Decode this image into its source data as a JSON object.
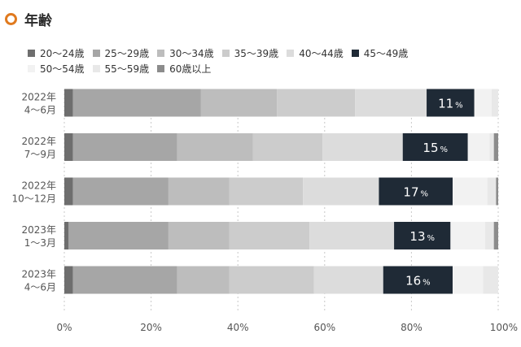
{
  "header": {
    "title": "年齢",
    "icon": "orange-ring-icon"
  },
  "chart_data": {
    "type": "bar",
    "orientation": "horizontal",
    "stacked": true,
    "title": "年齢",
    "categories": [
      "2022年\n4〜6月",
      "2022年\n7〜9月",
      "2022年\n10〜12月",
      "2023年\n1〜3月",
      "2023年\n4〜6月"
    ],
    "xlim": [
      0,
      100
    ],
    "x_ticks": [
      "0%",
      "20%",
      "40%",
      "60%",
      "80%",
      "100%"
    ],
    "grid": "vertical dotted",
    "legend_position": "top",
    "series": [
      {
        "name": "20〜24歳",
        "color": "#6e6e6e",
        "values": [
          2,
          2,
          2,
          1,
          2
        ]
      },
      {
        "name": "25〜29歳",
        "color": "#a6a6a6",
        "values": [
          29.5,
          24,
          22,
          23,
          24
        ]
      },
      {
        "name": "30〜34歳",
        "color": "#bdbdbd",
        "values": [
          17.5,
          17.5,
          14,
          14,
          12
        ]
      },
      {
        "name": "35〜39歳",
        "color": "#cccccc",
        "values": [
          18,
          16,
          17,
          18.5,
          19.5
        ]
      },
      {
        "name": "40〜44歳",
        "color": "#dcdcdc",
        "values": [
          16.5,
          18.5,
          17.5,
          19.5,
          16
        ]
      },
      {
        "name": "45〜49歳",
        "color": "#1f2a36",
        "values": [
          11,
          15,
          17,
          13,
          16
        ]
      },
      {
        "name": "50〜54歳",
        "color": "#f2f2f2",
        "values": [
          4,
          5,
          8,
          8,
          7
        ]
      },
      {
        "name": "55〜59歳",
        "color": "#e8e8e8",
        "values": [
          1.5,
          1,
          2,
          2,
          3.5
        ]
      },
      {
        "name": "60歳以上",
        "color": "#8c8c8c",
        "values": [
          0,
          1,
          0.5,
          1,
          0
        ]
      }
    ],
    "data_labels": {
      "series": "45〜49歳",
      "values": [
        "11",
        "15",
        "17",
        "13",
        "16"
      ],
      "unit": "%"
    }
  }
}
